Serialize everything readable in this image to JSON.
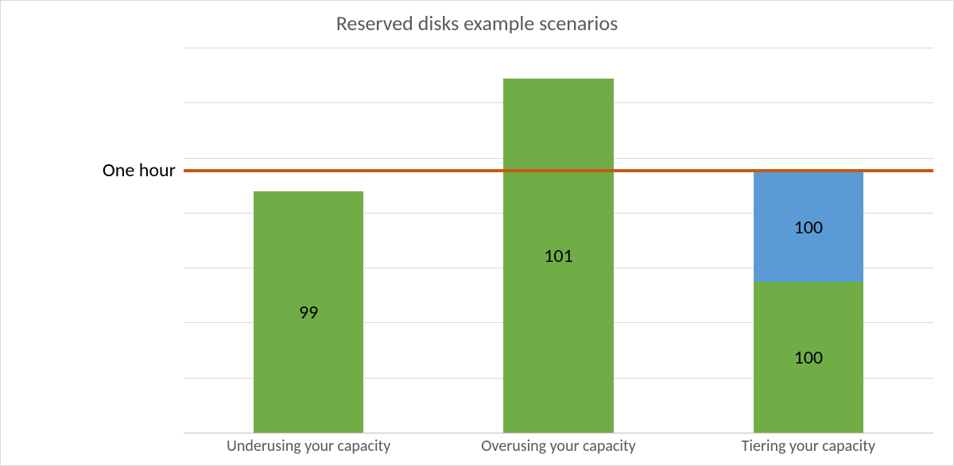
{
  "chart": {
    "type": "stacked-bar",
    "title": "Reserved disks example scenarios",
    "title_fontsize": 26,
    "title_color": "#595959",
    "background_color": "#ffffff",
    "border_color": "#d9d9d9",
    "grid_color": "#d9d9d9",
    "baseline_color": "#bfbfbf",
    "y_max": 280,
    "gridline_count": 7,
    "bar_width_pct": 44,
    "categories": [
      "Underusing your capacity",
      "Overusing your capacity",
      "Tiering your capacity"
    ],
    "series": [
      {
        "segments": [
          {
            "value": 176,
            "color": "#70ad47",
            "label": "99"
          }
        ]
      },
      {
        "segments": [
          {
            "value": 258,
            "color": "#70ad47",
            "label": "101"
          }
        ]
      },
      {
        "segments": [
          {
            "value": 110,
            "color": "#70ad47",
            "label": "100"
          },
          {
            "value": 80,
            "color": "#5b9bd5",
            "label": "100"
          }
        ]
      }
    ],
    "reference_line": {
      "value": 190,
      "color": "#c55a11",
      "width": 4,
      "label": "One hour"
    },
    "seg_label_fontsize": 24,
    "x_label_fontsize": 20,
    "x_label_color": "#595959",
    "annotation_fontsize": 24
  }
}
